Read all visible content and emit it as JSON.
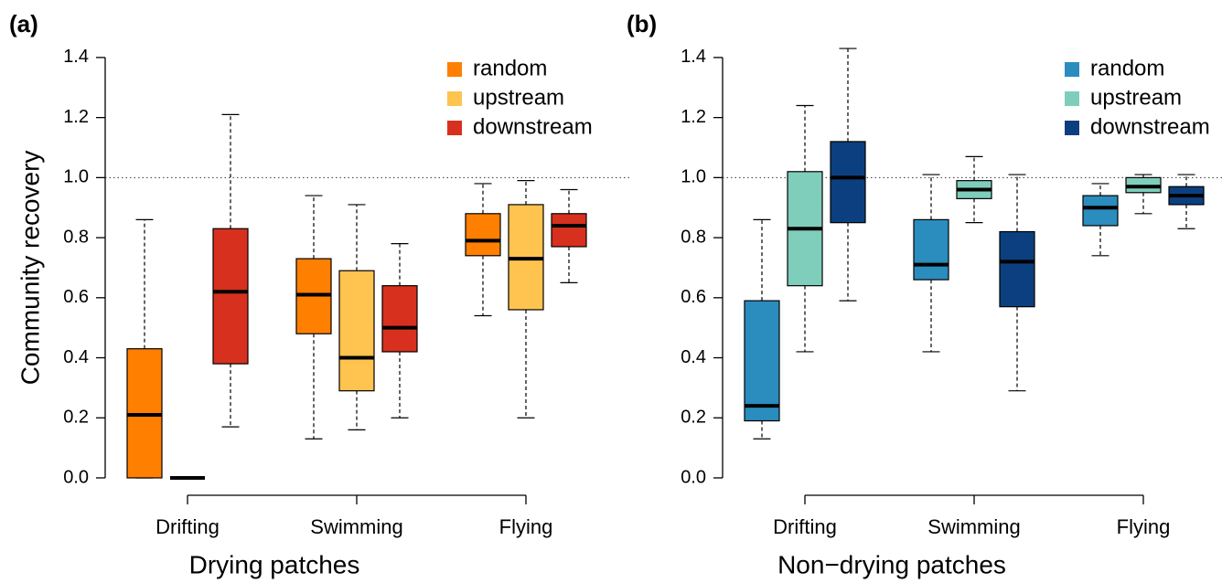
{
  "chart_data": [
    {
      "type": "box",
      "panel_label": "(a)",
      "xlabel": "Drying patches",
      "ylabel": "Community recovery",
      "categories": [
        "Drifting",
        "Swimming",
        "Flying"
      ],
      "ylim": [
        -0.05,
        1.45
      ],
      "yticks": [
        {
          "value": 0,
          "label": "0.0"
        },
        0.2,
        0.4,
        0.6,
        0.8,
        {
          "value": 1,
          "label": "1.0"
        },
        1.2,
        1.4
      ],
      "reference_line": 1,
      "series": [
        {
          "name": "random",
          "color": "#ff7f00",
          "values": [
            {
              "min": 0,
              "q1": 0,
              "median": 0.21,
              "q3": 0.43,
              "max": 0.86
            },
            {
              "min": 0.13,
              "q1": 0.48,
              "median": 0.61,
              "q3": 0.73,
              "max": 0.94
            },
            {
              "min": 0.54,
              "q1": 0.74,
              "median": 0.79,
              "q3": 0.88,
              "max": 0.98
            }
          ]
        },
        {
          "name": "upstream",
          "color": "#fec44f",
          "values": [
            {
              "min": 0,
              "q1": 0,
              "median": 0,
              "q3": 0,
              "max": 0
            },
            {
              "min": 0.16,
              "q1": 0.29,
              "median": 0.4,
              "q3": 0.69,
              "max": 0.91
            },
            {
              "min": 0.2,
              "q1": 0.56,
              "median": 0.73,
              "q3": 0.91,
              "max": 0.99
            }
          ]
        },
        {
          "name": "downstream",
          "color": "#d7301f",
          "values": [
            {
              "min": 0.17,
              "q1": 0.38,
              "median": 0.62,
              "q3": 0.83,
              "max": 1.21
            },
            {
              "min": 0.2,
              "q1": 0.42,
              "median": 0.5,
              "q3": 0.64,
              "max": 0.78
            },
            {
              "min": 0.65,
              "q1": 0.77,
              "median": 0.84,
              "q3": 0.88,
              "max": 0.96
            }
          ]
        }
      ]
    },
    {
      "type": "box",
      "panel_label": "(b)",
      "xlabel": "Non−drying patches",
      "categories": [
        "Drifting",
        "Swimming",
        "Flying"
      ],
      "ylim": [
        -0.05,
        1.45
      ],
      "yticks": [
        {
          "value": 0,
          "label": "0.0"
        },
        0.2,
        0.4,
        0.6,
        0.8,
        {
          "value": 1,
          "label": "1.0"
        },
        1.2,
        1.4
      ],
      "reference_line": 1,
      "series": [
        {
          "name": "random",
          "color": "#2b8cbe",
          "values": [
            {
              "min": 0.13,
              "q1": 0.19,
              "median": 0.24,
              "q3": 0.59,
              "max": 0.86
            },
            {
              "min": 0.42,
              "q1": 0.66,
              "median": 0.71,
              "q3": 0.86,
              "max": 1.01
            },
            {
              "min": 0.74,
              "q1": 0.84,
              "median": 0.9,
              "q3": 0.94,
              "max": 0.98
            }
          ]
        },
        {
          "name": "upstream",
          "color": "#7fcdbb",
          "values": [
            {
              "min": 0.42,
              "q1": 0.64,
              "median": 0.83,
              "q3": 1.02,
              "max": 1.24
            },
            {
              "min": 0.85,
              "q1": 0.93,
              "median": 0.96,
              "q3": 0.99,
              "max": 1.07
            },
            {
              "min": 0.88,
              "q1": 0.95,
              "median": 0.97,
              "q3": 1,
              "max": 1.01
            }
          ]
        },
        {
          "name": "downstream",
          "color": "#0c3f7f",
          "values": [
            {
              "min": 0.59,
              "q1": 0.85,
              "median": 1,
              "q3": 1.12,
              "max": 1.43
            },
            {
              "min": 0.29,
              "q1": 0.57,
              "median": 0.72,
              "q3": 0.82,
              "max": 1.01
            },
            {
              "min": 0.83,
              "q1": 0.91,
              "median": 0.94,
              "q3": 0.97,
              "max": 1.01
            }
          ]
        }
      ]
    }
  ]
}
